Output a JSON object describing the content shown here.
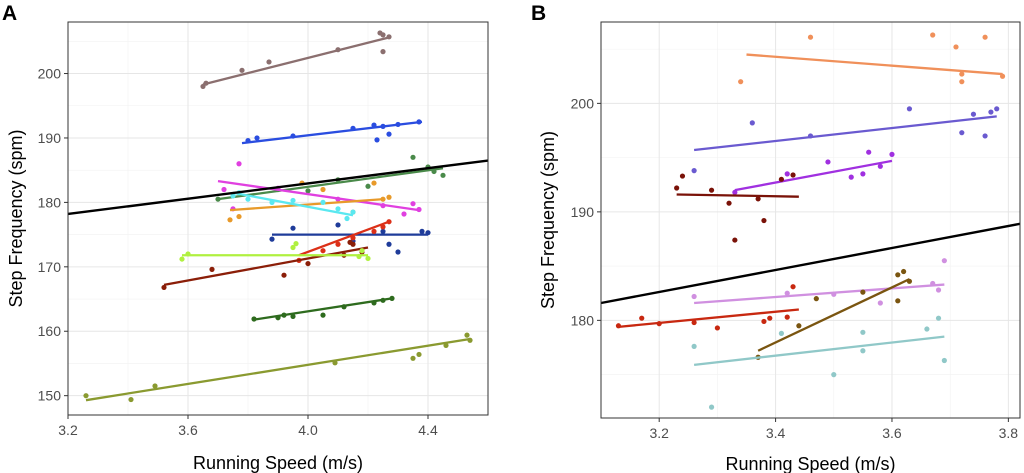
{
  "chart_data": [
    {
      "panel_label": "A",
      "type": "scatter",
      "xlabel": "Running Speed (m/s)",
      "ylabel": "Step Frequency (spm)",
      "xlim": [
        3.2,
        4.6
      ],
      "ylim": [
        147,
        208
      ],
      "xticks": [
        3.2,
        3.6,
        4.0,
        4.4
      ],
      "xtick_labels": [
        "3.2",
        "3.6",
        "4.0",
        "4.4"
      ],
      "yticks": [
        150,
        160,
        170,
        180,
        190,
        200
      ],
      "ytick_labels": [
        "150",
        "160",
        "170",
        "180",
        "190",
        "200"
      ],
      "grid": true,
      "reference_line": {
        "x": [
          3.2,
          4.6
        ],
        "y": [
          178.2,
          186.5
        ],
        "color": "#000000"
      },
      "series": [
        {
          "name": "mauve",
          "color": "#8b6f6f",
          "fit": {
            "x": [
              3.65,
              4.27
            ],
            "y": [
              198.3,
              205.6
            ]
          },
          "points": [
            [
              3.65,
              198.0
            ],
            [
              3.66,
              198.5
            ],
            [
              3.78,
              200.5
            ],
            [
              3.87,
              201.8
            ],
            [
              4.1,
              203.7
            ],
            [
              4.24,
              206.3
            ],
            [
              4.25,
              206.0
            ],
            [
              4.27,
              205.7
            ],
            [
              4.25,
              203.4
            ]
          ]
        },
        {
          "name": "blue",
          "color": "#2a4de0",
          "fit": {
            "x": [
              3.78,
              4.38
            ],
            "y": [
              189.2,
              192.5
            ]
          },
          "points": [
            [
              3.8,
              189.6
            ],
            [
              3.83,
              190.0
            ],
            [
              3.95,
              190.3
            ],
            [
              4.15,
              191.5
            ],
            [
              4.22,
              192.0
            ],
            [
              4.25,
              191.8
            ],
            [
              4.27,
              190.6
            ],
            [
              4.3,
              192.1
            ],
            [
              4.37,
              192.5
            ],
            [
              4.23,
              189.7
            ]
          ]
        },
        {
          "name": "green",
          "color": "#4a8a4a",
          "fit": {
            "x": [
              3.7,
              4.45
            ],
            "y": [
              180.5,
              185.3
            ]
          },
          "points": [
            [
              3.7,
              180.5
            ],
            [
              3.9,
              182.0
            ],
            [
              4.1,
              183.5
            ],
            [
              4.35,
              187.0
            ],
            [
              4.4,
              185.5
            ],
            [
              4.42,
              184.8
            ],
            [
              4.2,
              182.5
            ],
            [
              4.45,
              184.2
            ],
            [
              4.0,
              181.8
            ]
          ]
        },
        {
          "name": "magenta",
          "color": "#e040e0",
          "fit": {
            "x": [
              3.7,
              4.37
            ],
            "y": [
              183.3,
              178.8
            ]
          },
          "points": [
            [
              3.72,
              182.0
            ],
            [
              3.75,
              179.0
            ],
            [
              3.77,
              186.0
            ],
            [
              3.9,
              182.2
            ],
            [
              4.1,
              180.5
            ],
            [
              4.25,
              179.5
            ],
            [
              4.32,
              178.2
            ],
            [
              4.35,
              179.8
            ],
            [
              4.37,
              178.9
            ]
          ]
        },
        {
          "name": "orange",
          "color": "#e89a2a",
          "fit": {
            "x": [
              3.74,
              4.25
            ],
            "y": [
              178.8,
              180.5
            ]
          },
          "points": [
            [
              3.74,
              177.3
            ],
            [
              3.77,
              177.8
            ],
            [
              3.98,
              183.0
            ],
            [
              4.05,
              182.0
            ],
            [
              4.22,
              183.0
            ],
            [
              4.25,
              180.5
            ],
            [
              4.27,
              180.8
            ],
            [
              4.15,
              178.5
            ]
          ]
        },
        {
          "name": "cyan",
          "color": "#5ae8f0",
          "fit": {
            "x": [
              3.75,
              4.15
            ],
            "y": [
              181.5,
              178.0
            ]
          },
          "points": [
            [
              3.75,
              181.0
            ],
            [
              3.77,
              181.5
            ],
            [
              3.8,
              180.5
            ],
            [
              3.88,
              180.0
            ],
            [
              3.95,
              180.3
            ],
            [
              4.05,
              180.0
            ],
            [
              4.1,
              179.0
            ],
            [
              4.13,
              177.5
            ],
            [
              4.15,
              178.5
            ]
          ]
        },
        {
          "name": "navy",
          "color": "#1f3c9a",
          "fit": {
            "x": [
              3.88,
              4.4
            ],
            "y": [
              175.0,
              175.0
            ]
          },
          "points": [
            [
              3.88,
              174.3
            ],
            [
              3.95,
              176.0
            ],
            [
              4.1,
              176.5
            ],
            [
              4.15,
              174.0
            ],
            [
              4.25,
              175.5
            ],
            [
              4.27,
              173.5
            ],
            [
              4.3,
              172.3
            ],
            [
              4.38,
              175.5
            ],
            [
              4.4,
              175.3
            ]
          ]
        },
        {
          "name": "red",
          "color": "#dc3018",
          "fit": {
            "x": [
              3.97,
              4.27
            ],
            "y": [
              171.8,
              177.0
            ]
          },
          "points": [
            [
              3.97,
              171.0
            ],
            [
              4.05,
              172.5
            ],
            [
              4.1,
              173.5
            ],
            [
              4.15,
              174.5
            ],
            [
              4.22,
              175.5
            ],
            [
              4.27,
              177.0
            ],
            [
              4.25,
              176.2
            ]
          ]
        },
        {
          "name": "dark red",
          "color": "#8b1e08",
          "fit": {
            "x": [
              3.52,
              4.2
            ],
            "y": [
              167.2,
              173.0
            ]
          },
          "points": [
            [
              3.52,
              166.8
            ],
            [
              3.68,
              169.6
            ],
            [
              3.92,
              168.7
            ],
            [
              4.12,
              171.8
            ],
            [
              4.14,
              173.8
            ],
            [
              4.15,
              173.5
            ],
            [
              4.0,
              170.5
            ],
            [
              4.18,
              172.3
            ]
          ]
        },
        {
          "name": "lime",
          "color": "#b0f040",
          "fit": {
            "x": [
              3.58,
              4.2
            ],
            "y": [
              171.8,
              171.8
            ]
          },
          "points": [
            [
              3.58,
              171.2
            ],
            [
              3.6,
              172.0
            ],
            [
              3.95,
              173.0
            ],
            [
              3.96,
              173.6
            ],
            [
              4.18,
              172.5
            ],
            [
              4.2,
              171.3
            ],
            [
              4.17,
              171.6
            ]
          ]
        },
        {
          "name": "dark green",
          "color": "#2e6b1e",
          "fit": {
            "x": [
              3.82,
              4.28
            ],
            "y": [
              161.8,
              165.1
            ]
          },
          "points": [
            [
              3.82,
              161.9
            ],
            [
              3.9,
              162.1
            ],
            [
              3.92,
              162.5
            ],
            [
              3.95,
              162.3
            ],
            [
              4.05,
              162.5
            ],
            [
              4.12,
              163.8
            ],
            [
              4.22,
              164.4
            ],
            [
              4.25,
              164.8
            ],
            [
              4.28,
              165.1
            ]
          ]
        },
        {
          "name": "olive",
          "color": "#8a9a30",
          "fit": {
            "x": [
              3.26,
              4.54
            ],
            "y": [
              149.3,
              158.8
            ]
          },
          "points": [
            [
              3.26,
              150.0
            ],
            [
              3.41,
              149.4
            ],
            [
              3.49,
              151.5
            ],
            [
              4.09,
              155.1
            ],
            [
              4.35,
              155.8
            ],
            [
              4.37,
              156.4
            ],
            [
              4.46,
              157.8
            ],
            [
              4.53,
              159.4
            ],
            [
              4.54,
              158.6
            ]
          ]
        }
      ]
    },
    {
      "panel_label": "B",
      "type": "scatter",
      "xlabel": "Running Speed (m/s)",
      "ylabel": "Step Frequency (spm)",
      "xlim": [
        3.1,
        3.82
      ],
      "ylim": [
        171,
        207.5
      ],
      "xticks": [
        3.2,
        3.4,
        3.6,
        3.8
      ],
      "xtick_labels": [
        "3.2",
        "3.4",
        "3.6",
        "3.8"
      ],
      "yticks": [
        180,
        190,
        200
      ],
      "ytick_labels": [
        "180",
        "190",
        "200"
      ],
      "grid": true,
      "reference_line": {
        "x": [
          3.1,
          3.82
        ],
        "y": [
          181.6,
          188.9
        ],
        "color": "#000000"
      },
      "series": [
        {
          "name": "orange",
          "color": "#f0905a",
          "fit": {
            "x": [
              3.35,
              3.79
            ],
            "y": [
              204.5,
              202.7
            ]
          },
          "points": [
            [
              3.34,
              202.0
            ],
            [
              3.46,
              206.1
            ],
            [
              3.67,
              206.3
            ],
            [
              3.71,
              205.2
            ],
            [
              3.72,
              202.7
            ],
            [
              3.72,
              202.0
            ],
            [
              3.76,
              206.1
            ],
            [
              3.79,
              202.5
            ]
          ]
        },
        {
          "name": "slate blue",
          "color": "#6a5ad0",
          "fit": {
            "x": [
              3.26,
              3.78
            ],
            "y": [
              195.7,
              198.8
            ]
          },
          "points": [
            [
              3.26,
              193.8
            ],
            [
              3.36,
              198.2
            ],
            [
              3.46,
              197.0
            ],
            [
              3.63,
              199.5
            ],
            [
              3.72,
              197.3
            ],
            [
              3.74,
              199.0
            ],
            [
              3.76,
              197.0
            ],
            [
              3.77,
              199.2
            ],
            [
              3.78,
              199.5
            ]
          ]
        },
        {
          "name": "violet",
          "color": "#a030e0",
          "fit": {
            "x": [
              3.33,
              3.6
            ],
            "y": [
              192.0,
              194.7
            ]
          },
          "points": [
            [
              3.33,
              191.8
            ],
            [
              3.42,
              193.5
            ],
            [
              3.49,
              194.6
            ],
            [
              3.53,
              193.2
            ],
            [
              3.56,
              195.5
            ],
            [
              3.58,
              194.2
            ],
            [
              3.6,
              195.3
            ],
            [
              3.55,
              193.5
            ]
          ]
        },
        {
          "name": "dark red",
          "color": "#7a1208",
          "fit": {
            "x": [
              3.23,
              3.44
            ],
            "y": [
              191.6,
              191.4
            ]
          },
          "points": [
            [
              3.23,
              192.2
            ],
            [
              3.24,
              193.3
            ],
            [
              3.29,
              192.0
            ],
            [
              3.32,
              190.8
            ],
            [
              3.33,
              187.4
            ],
            [
              3.37,
              191.2
            ],
            [
              3.38,
              189.2
            ],
            [
              3.41,
              193.0
            ],
            [
              3.43,
              193.4
            ]
          ]
        },
        {
          "name": "light purple",
          "color": "#d090e0",
          "fit": {
            "x": [
              3.26,
              3.69
            ],
            "y": [
              181.6,
              183.3
            ]
          },
          "points": [
            [
              3.26,
              182.2
            ],
            [
              3.42,
              182.5
            ],
            [
              3.5,
              182.4
            ],
            [
              3.58,
              181.6
            ],
            [
              3.67,
              183.4
            ],
            [
              3.68,
              182.8
            ],
            [
              3.69,
              185.5
            ]
          ]
        },
        {
          "name": "brown",
          "color": "#7a5510",
          "fit": {
            "x": [
              3.37,
              3.63
            ],
            "y": [
              177.2,
              183.8
            ]
          },
          "points": [
            [
              3.37,
              176.6
            ],
            [
              3.44,
              179.5
            ],
            [
              3.47,
              182.0
            ],
            [
              3.55,
              182.6
            ],
            [
              3.61,
              184.2
            ],
            [
              3.62,
              184.5
            ],
            [
              3.63,
              183.6
            ],
            [
              3.61,
              181.8
            ]
          ]
        },
        {
          "name": "red",
          "color": "#c82810",
          "fit": {
            "x": [
              3.13,
              3.44
            ],
            "y": [
              179.4,
              181.0
            ]
          },
          "points": [
            [
              3.13,
              179.5
            ],
            [
              3.17,
              180.2
            ],
            [
              3.2,
              179.7
            ],
            [
              3.26,
              179.8
            ],
            [
              3.3,
              179.3
            ],
            [
              3.38,
              179.9
            ],
            [
              3.39,
              180.2
            ],
            [
              3.42,
              180.3
            ],
            [
              3.43,
              183.1
            ]
          ]
        },
        {
          "name": "light teal",
          "color": "#90c8c8",
          "fit": {
            "x": [
              3.26,
              3.69
            ],
            "y": [
              175.9,
              178.5
            ]
          },
          "points": [
            [
              3.26,
              177.6
            ],
            [
              3.29,
              172.0
            ],
            [
              3.41,
              178.8
            ],
            [
              3.5,
              175.0
            ],
            [
              3.55,
              177.2
            ],
            [
              3.55,
              178.9
            ],
            [
              3.66,
              179.2
            ],
            [
              3.68,
              180.2
            ],
            [
              3.69,
              176.3
            ]
          ]
        }
      ]
    }
  ]
}
